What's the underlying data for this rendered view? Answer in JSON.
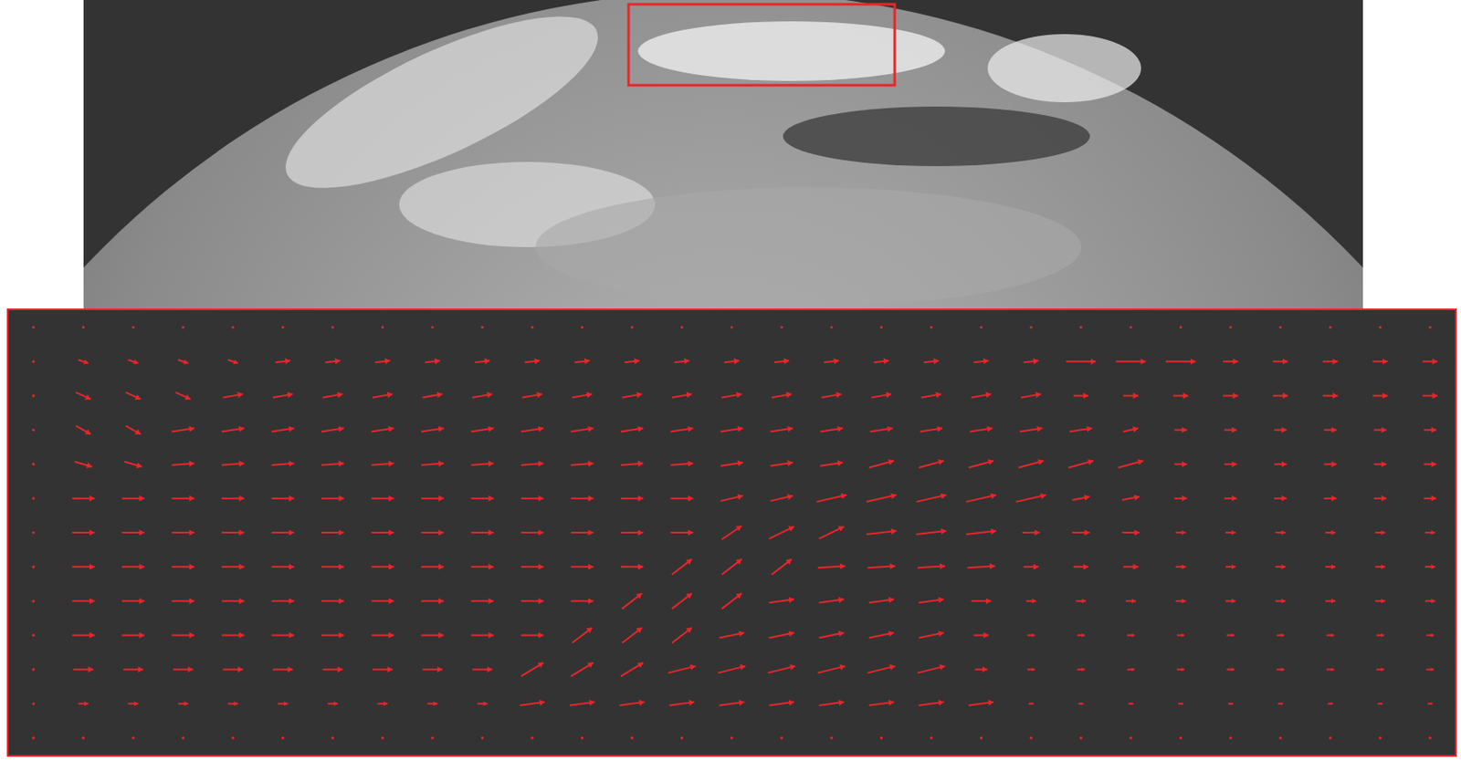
{
  "chart_data": {
    "type": "quiver",
    "tick_labels": false,
    "color": "#e8262b",
    "xlim": [
      -0.5,
      28.5
    ],
    "ylim": [
      -0.5,
      12.5
    ],
    "x": [
      0,
      1,
      2,
      3,
      4,
      5,
      6,
      7,
      8,
      9,
      10,
      11,
      12,
      13,
      14,
      15,
      16,
      17,
      18,
      19,
      20,
      21,
      22,
      23,
      24,
      25,
      26,
      27,
      28
    ],
    "y": [
      12,
      11,
      10,
      9,
      8,
      7,
      6,
      5,
      4,
      3,
      2,
      1,
      0
    ],
    "u": [
      [
        0,
        0,
        0,
        0,
        0,
        0,
        0,
        0,
        0,
        0,
        0,
        0,
        0,
        0,
        0,
        0,
        0,
        0,
        0,
        0,
        0,
        0,
        0,
        0,
        0,
        0,
        0,
        0,
        0
      ],
      [
        0,
        0.2,
        0.2,
        0.2,
        0.2,
        0.3,
        0.3,
        0.3,
        0.3,
        0.3,
        0.3,
        0.3,
        0.3,
        0.3,
        0.3,
        0.3,
        0.3,
        0.3,
        0.3,
        0.3,
        0.3,
        0.6,
        0.6,
        0.6,
        0.3,
        0.3,
        0.3,
        0.3,
        0.3
      ],
      [
        0,
        0.3,
        0.3,
        0.3,
        0.4,
        0.4,
        0.4,
        0.4,
        0.4,
        0.4,
        0.4,
        0.4,
        0.4,
        0.4,
        0.4,
        0.4,
        0.4,
        0.4,
        0.4,
        0.4,
        0.4,
        0.3,
        0.3,
        0.3,
        0.3,
        0.3,
        0.3,
        0.3,
        0.3
      ],
      [
        0,
        0.3,
        0.3,
        0.45,
        0.45,
        0.45,
        0.45,
        0.45,
        0.45,
        0.45,
        0.45,
        0.45,
        0.45,
        0.45,
        0.45,
        0.45,
        0.45,
        0.45,
        0.45,
        0.45,
        0.45,
        0.45,
        0.3,
        0.25,
        0.25,
        0.25,
        0.25,
        0.25,
        0.25
      ],
      [
        0,
        0.35,
        0.35,
        0.45,
        0.45,
        0.45,
        0.45,
        0.45,
        0.45,
        0.45,
        0.45,
        0.45,
        0.45,
        0.45,
        0.45,
        0.45,
        0.45,
        0.5,
        0.5,
        0.5,
        0.5,
        0.5,
        0.5,
        0.25,
        0.25,
        0.25,
        0.25,
        0.25,
        0.25
      ],
      [
        0,
        0.45,
        0.45,
        0.45,
        0.45,
        0.45,
        0.45,
        0.45,
        0.45,
        0.45,
        0.45,
        0.45,
        0.45,
        0.45,
        0.45,
        0.45,
        0.6,
        0.6,
        0.6,
        0.6,
        0.6,
        0.35,
        0.35,
        0.25,
        0.25,
        0.25,
        0.25,
        0.25,
        0.25
      ],
      [
        0,
        0.45,
        0.45,
        0.45,
        0.45,
        0.45,
        0.45,
        0.45,
        0.45,
        0.45,
        0.45,
        0.45,
        0.45,
        0.45,
        0.4,
        0.5,
        0.5,
        0.6,
        0.6,
        0.6,
        0.35,
        0.35,
        0.35,
        0.2,
        0.2,
        0.2,
        0.2,
        0.2,
        0.2
      ],
      [
        0,
        0.45,
        0.45,
        0.45,
        0.45,
        0.45,
        0.45,
        0.45,
        0.45,
        0.45,
        0.45,
        0.45,
        0.45,
        0.4,
        0.4,
        0.4,
        0.55,
        0.55,
        0.55,
        0.55,
        0.3,
        0.3,
        0.3,
        0.2,
        0.2,
        0.2,
        0.2,
        0.2,
        0.2
      ],
      [
        0,
        0.45,
        0.45,
        0.45,
        0.45,
        0.45,
        0.45,
        0.45,
        0.45,
        0.45,
        0.45,
        0.45,
        0.4,
        0.4,
        0.4,
        0.5,
        0.5,
        0.5,
        0.5,
        0.4,
        0.2,
        0.2,
        0.2,
        0.2,
        0.2,
        0.2,
        0.2,
        0.2,
        0.2
      ],
      [
        0,
        0.45,
        0.45,
        0.45,
        0.45,
        0.45,
        0.45,
        0.45,
        0.45,
        0.45,
        0.45,
        0.4,
        0.4,
        0.4,
        0.5,
        0.5,
        0.5,
        0.5,
        0.5,
        0.3,
        0.15,
        0.15,
        0.15,
        0.15,
        0.15,
        0.15,
        0.15,
        0.15,
        0.15
      ],
      [
        0,
        0.4,
        0.4,
        0.4,
        0.4,
        0.4,
        0.4,
        0.4,
        0.4,
        0.4,
        0.45,
        0.45,
        0.45,
        0.55,
        0.55,
        0.55,
        0.55,
        0.55,
        0.55,
        0.25,
        0.15,
        0.15,
        0.15,
        0.15,
        0.15,
        0.15,
        0.15,
        0.15,
        0.15
      ],
      [
        0,
        0.2,
        0.2,
        0.2,
        0.2,
        0.2,
        0.2,
        0.2,
        0.2,
        0.2,
        0.5,
        0.5,
        0.5,
        0.5,
        0.5,
        0.5,
        0.5,
        0.5,
        0.5,
        0.5,
        0.1,
        0.1,
        0.1,
        0.1,
        0.1,
        0.1,
        0.1,
        0.1,
        0.1
      ],
      [
        0,
        0,
        0,
        0,
        0,
        0,
        0,
        0,
        0,
        0,
        0,
        0,
        0,
        0,
        0,
        0,
        0,
        0,
        0,
        0,
        0,
        0,
        0,
        0,
        0,
        0,
        0,
        0,
        0
      ]
    ],
    "v": [
      [
        0,
        0,
        0,
        0,
        0,
        0,
        0,
        0,
        0,
        0,
        0,
        0,
        0,
        0,
        0,
        0,
        0,
        0,
        0,
        0,
        0,
        0,
        0,
        0,
        0,
        0,
        0,
        0,
        0
      ],
      [
        0,
        -0.1,
        -0.1,
        -0.1,
        -0.1,
        0.05,
        0.05,
        0.05,
        0.05,
        0.05,
        0.05,
        0.05,
        0.05,
        0.05,
        0.05,
        0.05,
        0.05,
        0.05,
        0.05,
        0.05,
        0.05,
        0,
        0,
        0,
        0,
        0,
        0,
        0,
        0
      ],
      [
        0,
        -0.2,
        -0.2,
        -0.2,
        0.1,
        0.1,
        0.1,
        0.1,
        0.1,
        0.1,
        0.1,
        0.1,
        0.1,
        0.1,
        0.1,
        0.1,
        0.1,
        0.1,
        0.1,
        0.1,
        0.1,
        0,
        0,
        0,
        0,
        0,
        0,
        0,
        0
      ],
      [
        0,
        -0.25,
        -0.25,
        0.1,
        0.1,
        0.1,
        0.1,
        0.1,
        0.1,
        0.1,
        0.1,
        0.1,
        0.1,
        0.1,
        0.1,
        0.1,
        0.1,
        0.1,
        0.1,
        0.1,
        0.1,
        0.1,
        0.1,
        0,
        0,
        0,
        0,
        0,
        0
      ],
      [
        0,
        -0.15,
        -0.15,
        0.05,
        0.05,
        0.05,
        0.05,
        0.05,
        0.05,
        0.05,
        0.05,
        0.05,
        0.05,
        0.05,
        0.1,
        0.1,
        0.1,
        0.2,
        0.2,
        0.2,
        0.2,
        0.2,
        0.2,
        0,
        0,
        0,
        0,
        0,
        0
      ],
      [
        0,
        0,
        0,
        0,
        0,
        0,
        0,
        0,
        0,
        0,
        0,
        0,
        0,
        0,
        0.15,
        0.15,
        0.2,
        0.2,
        0.2,
        0.2,
        0.2,
        0.1,
        0.1,
        0,
        0,
        0,
        0,
        0,
        0
      ],
      [
        0,
        0,
        0,
        0,
        0,
        0,
        0,
        0,
        0,
        0,
        0,
        0,
        0,
        0,
        0.4,
        0.35,
        0.35,
        0.1,
        0.1,
        0.1,
        0,
        0,
        0,
        0,
        0,
        0,
        0,
        0,
        0
      ],
      [
        0,
        0,
        0,
        0,
        0,
        0,
        0,
        0,
        0,
        0,
        0,
        0,
        0,
        0.45,
        0.45,
        0.45,
        0.05,
        0.05,
        0.05,
        0.05,
        0,
        0,
        0,
        0,
        0,
        0,
        0,
        0,
        0
      ],
      [
        0,
        0,
        0,
        0,
        0,
        0,
        0,
        0,
        0,
        0,
        0,
        0,
        0.45,
        0.45,
        0.45,
        0.1,
        0.1,
        0.1,
        0.1,
        0,
        0,
        0,
        0,
        0,
        0,
        0,
        0,
        0,
        0
      ],
      [
        0,
        0,
        0,
        0,
        0,
        0,
        0,
        0,
        0,
        0,
        0,
        0.45,
        0.45,
        0.45,
        0.15,
        0.15,
        0.15,
        0.15,
        0.15,
        0,
        0,
        0,
        0,
        0,
        0,
        0,
        0,
        0,
        0
      ],
      [
        0,
        0,
        0,
        0,
        0,
        0,
        0,
        0,
        0,
        0,
        0.4,
        0.4,
        0.4,
        0.2,
        0.2,
        0.2,
        0.2,
        0.2,
        0.2,
        0,
        0,
        0,
        0,
        0,
        0,
        0,
        0,
        0,
        0
      ],
      [
        0,
        0,
        0,
        0,
        0,
        0,
        0,
        0,
        0,
        0,
        0.1,
        0.1,
        0.1,
        0.1,
        0.1,
        0.1,
        0.1,
        0.1,
        0.1,
        0.1,
        0,
        0,
        0,
        0,
        0,
        0,
        0,
        0,
        0
      ],
      [
        0,
        0,
        0,
        0,
        0,
        0,
        0,
        0,
        0,
        0,
        0,
        0,
        0,
        0,
        0,
        0,
        0,
        0,
        0,
        0,
        0,
        0,
        0,
        0,
        0,
        0,
        0,
        0,
        0
      ]
    ]
  }
}
